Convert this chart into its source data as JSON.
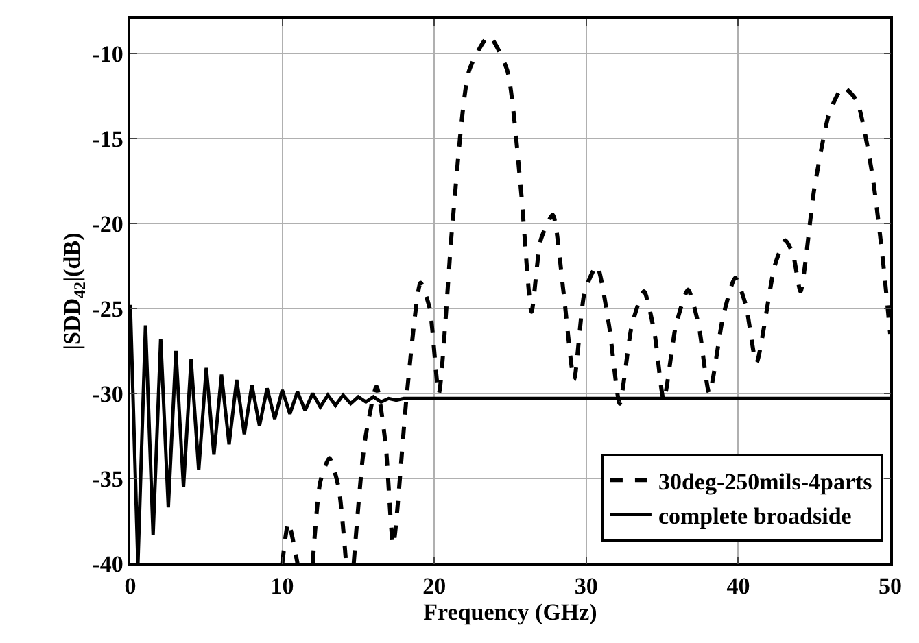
{
  "chart_data": {
    "type": "line",
    "xlabel": "Frequency (GHz)",
    "ylabel": "|SDD$_{42}$|(dB)",
    "xlim": [
      0,
      50
    ],
    "xticks": [
      0,
      10,
      20,
      30,
      40,
      50
    ],
    "ylim": [
      -40,
      -8
    ],
    "yticks": [
      -40,
      -35,
      -30,
      -25,
      -20,
      -15,
      -10
    ],
    "grid": true,
    "legend": "bottom right",
    "marker": "none",
    "series": [
      {
        "name": "30deg-250mils-4parts",
        "color": "#000000",
        "line_style": "dashed",
        "x": [
          10,
          10.4,
          11,
          11.5,
          12,
          12.5,
          13.1,
          13.7,
          14.2,
          14.45,
          14.7,
          15.4,
          16.2,
          16.8,
          17.3,
          18.2,
          19.1,
          19.7,
          20.3,
          21.2,
          22.3,
          23.6,
          24.8,
          25.7,
          26.4,
          27.0,
          27.8,
          28.5,
          29.2,
          29.9,
          30.7,
          31.5,
          32.2,
          33.0,
          33.8,
          34.5,
          35.1,
          35.9,
          36.7,
          37.4,
          38.1,
          39.0,
          39.8,
          40.5,
          41.2,
          42.4,
          43.1,
          43.6,
          44.1,
          45.0,
          46.0,
          46.9,
          47.8,
          48.8,
          49.5,
          50
        ],
        "values": [
          -40,
          -37.6,
          -40,
          null,
          -40,
          -35.2,
          -33.8,
          -35.5,
          -40,
          null,
          -40,
          -33,
          -29.6,
          -33,
          -38.9,
          -30,
          -23.5,
          -25,
          -30,
          -20,
          -11,
          -9,
          -11,
          -18,
          -25.2,
          -21,
          -19.5,
          -24,
          -29.2,
          -24,
          -22.5,
          -26,
          -30.6,
          -26,
          -24,
          -26.5,
          -30.4,
          -26,
          -23.9,
          -26,
          -30,
          -25.5,
          -23.2,
          -24.8,
          -28.2,
          -22.5,
          -21,
          -21.8,
          -24,
          -18,
          -13.5,
          -12,
          -12.8,
          -17,
          -22,
          -26.5
        ]
      },
      {
        "name": "complete broadside",
        "color": "#000000",
        "line_style": "solid",
        "x": [
          0,
          0.5,
          1,
          1.5,
          2,
          2.5,
          3,
          3.5,
          4,
          4.5,
          5,
          5.5,
          6,
          6.5,
          7,
          7.5,
          8,
          8.5,
          9,
          9.5,
          10,
          10.5,
          11,
          11.5,
          12,
          12.5,
          13,
          13.5,
          14,
          14.5,
          15,
          15.5,
          16,
          16.5,
          17,
          17.5,
          18,
          50
        ],
        "values": [
          -24.8,
          -40,
          -26.0,
          -38.3,
          -26.8,
          -36.7,
          -27.5,
          -35.5,
          -28.0,
          -34.5,
          -28.5,
          -33.6,
          -28.9,
          -33.0,
          -29.2,
          -32.4,
          -29.5,
          -31.9,
          -29.7,
          -31.5,
          -29.8,
          -31.2,
          -29.9,
          -31.0,
          -30.0,
          -30.8,
          -30.1,
          -30.7,
          -30.1,
          -30.6,
          -30.2,
          -30.5,
          -30.2,
          -30.5,
          -30.3,
          -30.4,
          -30.3,
          -30.3
        ]
      }
    ]
  }
}
